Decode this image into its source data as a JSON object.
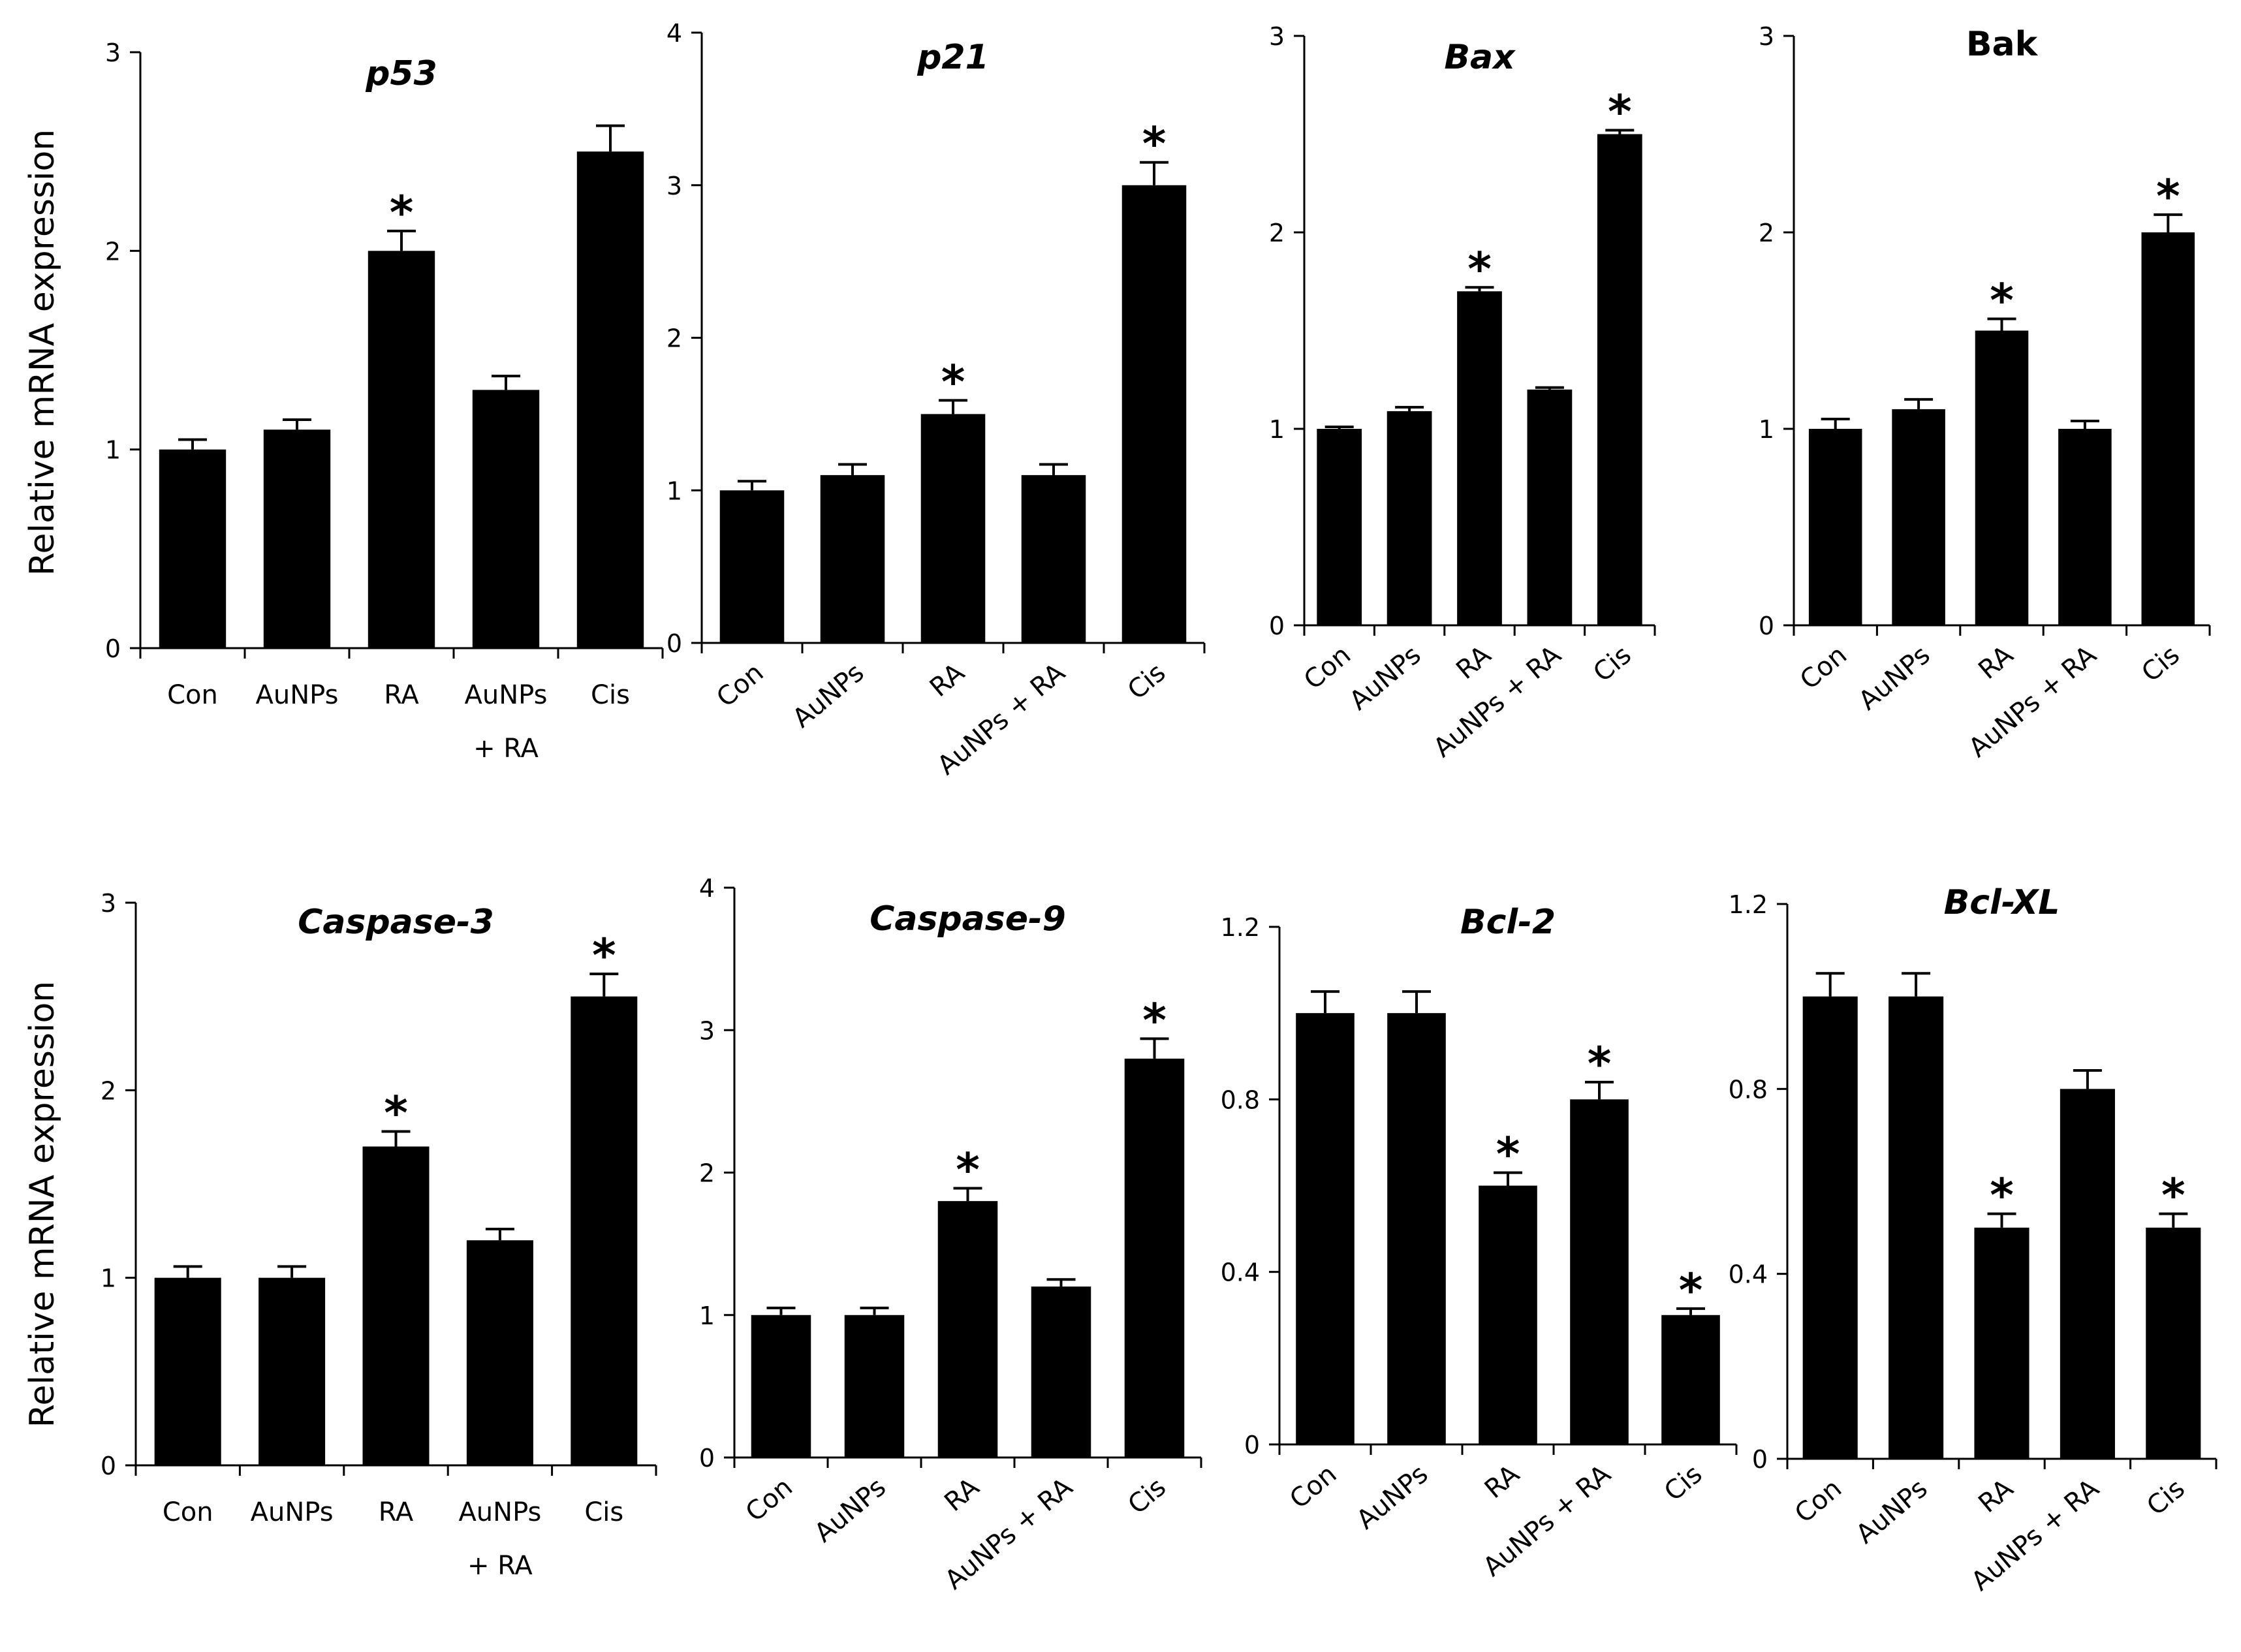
{
  "figure": {
    "ylabel": "Relative mRNA expression"
  },
  "chart_data": [
    {
      "type": "bar",
      "title": "p53",
      "title_italic": true,
      "categories": [
        "Con",
        "AuNPs",
        "RA",
        "AuNPs\n+ RA",
        "Cis"
      ],
      "values": [
        1.0,
        1.1,
        2.0,
        1.3,
        2.5
      ],
      "errors": [
        0.05,
        0.05,
        0.1,
        0.07,
        0.13
      ],
      "significant": [
        false,
        false,
        true,
        false,
        false
      ],
      "ylim": [
        0,
        3
      ],
      "yticks": [
        "0",
        "1",
        "2",
        "3"
      ],
      "ytick_values": [
        0,
        1,
        2,
        3
      ],
      "ylabel": "Relative mRNA expression",
      "rotated_labels": false
    },
    {
      "type": "bar",
      "title": "p21",
      "title_italic": true,
      "categories": [
        "Con",
        "AuNPs",
        "RA",
        "AuNPs + RA",
        "Cis"
      ],
      "values": [
        1.0,
        1.1,
        1.5,
        1.1,
        3.0
      ],
      "errors": [
        0.06,
        0.07,
        0.09,
        0.07,
        0.15
      ],
      "significant": [
        false,
        false,
        true,
        false,
        true
      ],
      "ylim": [
        0,
        4
      ],
      "yticks": [
        "0",
        "1",
        "2",
        "3",
        "4"
      ],
      "ytick_values": [
        0,
        1,
        2,
        3,
        4
      ],
      "ylabel": "",
      "rotated_labels": true
    },
    {
      "type": "bar",
      "title": "Bax",
      "title_italic": true,
      "categories": [
        "Con",
        "AuNPs",
        "RA",
        "AuNPs + RA",
        "Cis"
      ],
      "values": [
        1.0,
        1.09,
        1.7,
        1.2,
        2.5
      ],
      "errors": [
        0.01,
        0.02,
        0.02,
        0.01,
        0.02
      ],
      "significant": [
        false,
        false,
        true,
        false,
        true
      ],
      "ylim": [
        0,
        3
      ],
      "yticks": [
        "0",
        "1",
        "2",
        "3"
      ],
      "ytick_values": [
        0,
        1,
        2,
        3
      ],
      "ylabel": "",
      "rotated_labels": true
    },
    {
      "type": "bar",
      "title": "Bak",
      "title_italic": false,
      "categories": [
        "Con",
        "AuNPs",
        "RA",
        "AuNPs + RA",
        "Cis"
      ],
      "values": [
        1.0,
        1.1,
        1.5,
        1.0,
        2.0
      ],
      "errors": [
        0.05,
        0.05,
        0.06,
        0.04,
        0.09
      ],
      "significant": [
        false,
        false,
        true,
        false,
        true
      ],
      "ylim": [
        0,
        3
      ],
      "yticks": [
        "0",
        "1",
        "2",
        "3"
      ],
      "ytick_values": [
        0,
        1,
        2,
        3
      ],
      "ylabel": "",
      "rotated_labels": true
    },
    {
      "type": "bar",
      "title": "Caspase-3",
      "title_italic": true,
      "categories": [
        "Con",
        "AuNPs",
        "RA",
        "AuNPs\n+ RA",
        "Cis"
      ],
      "values": [
        1.0,
        1.0,
        1.7,
        1.2,
        2.5
      ],
      "errors": [
        0.06,
        0.06,
        0.08,
        0.06,
        0.12
      ],
      "significant": [
        false,
        false,
        true,
        false,
        true
      ],
      "ylim": [
        0,
        3
      ],
      "yticks": [
        "0",
        "1",
        "2",
        "3"
      ],
      "ytick_values": [
        0,
        1,
        2,
        3
      ],
      "ylabel": "Relative mRNA expression",
      "rotated_labels": false
    },
    {
      "type": "bar",
      "title": "Caspase-9",
      "title_italic": true,
      "categories": [
        "Con",
        "AuNPs",
        "RA",
        "AuNPs + RA",
        "Cis"
      ],
      "values": [
        1.0,
        1.0,
        1.8,
        1.2,
        2.8
      ],
      "errors": [
        0.05,
        0.05,
        0.09,
        0.05,
        0.14
      ],
      "significant": [
        false,
        false,
        true,
        false,
        true
      ],
      "ylim": [
        0,
        4
      ],
      "yticks": [
        "0",
        "1",
        "2",
        "3",
        "4"
      ],
      "ytick_values": [
        0,
        1,
        2,
        3,
        4
      ],
      "ylabel": "",
      "rotated_labels": true
    },
    {
      "type": "bar",
      "title": "Bcl-2",
      "title_italic": true,
      "categories": [
        "Con",
        "AuNPs",
        "RA",
        "AuNPs + RA",
        "Cis"
      ],
      "values": [
        1.0,
        1.0,
        0.6,
        0.8,
        0.3
      ],
      "errors": [
        0.05,
        0.05,
        0.03,
        0.04,
        0.015
      ],
      "significant": [
        false,
        false,
        true,
        true,
        true
      ],
      "ylim": [
        0,
        1.2
      ],
      "yticks": [
        "0",
        "0.4",
        "0.8",
        "1.2"
      ],
      "ytick_values": [
        0,
        0.4,
        0.8,
        1.2
      ],
      "ylabel": "",
      "rotated_labels": true
    },
    {
      "type": "bar",
      "title": "Bcl-XL",
      "title_italic": true,
      "categories": [
        "Con",
        "AuNPs",
        "RA",
        "AuNPs + RA",
        "Cis"
      ],
      "values": [
        1.0,
        1.0,
        0.5,
        0.8,
        0.5
      ],
      "errors": [
        0.05,
        0.05,
        0.03,
        0.04,
        0.03
      ],
      "significant": [
        false,
        false,
        true,
        false,
        true
      ],
      "ylim": [
        0,
        1.2
      ],
      "yticks": [
        "0",
        "0.4",
        "0.8",
        "1.2"
      ],
      "ytick_values": [
        0,
        0.4,
        0.8,
        1.2
      ],
      "ylabel": "",
      "rotated_labels": true
    }
  ]
}
